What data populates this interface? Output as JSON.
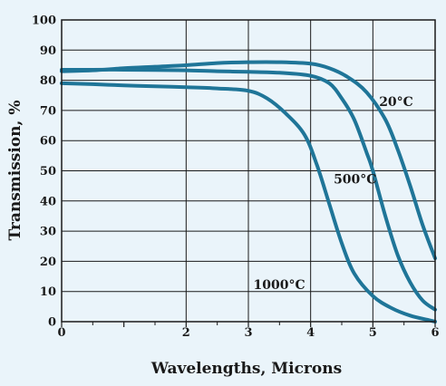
{
  "chart_data": {
    "type": "line",
    "xlabel": "Wavelengths, Microns",
    "ylabel": "Transmission, %",
    "xlim": [
      0,
      6
    ],
    "ylim": [
      0,
      100
    ],
    "x_ticks": [
      0,
      1,
      2,
      3,
      4,
      5,
      6
    ],
    "x_tick_labels": [
      "0",
      "",
      "2",
      "3",
      "4",
      "5",
      "6"
    ],
    "y_ticks": [
      0,
      10,
      20,
      30,
      40,
      50,
      60,
      70,
      80,
      90,
      100
    ],
    "y_tick_labels": [
      "0",
      "10",
      "20",
      "30",
      "40",
      "50",
      "60",
      "70",
      "80",
      "90",
      "100"
    ],
    "minor_x_ticks": [
      0.5,
      1.5,
      2.5,
      3.5,
      4.5,
      5.5
    ],
    "grid": true,
    "line_color": "#1f7598",
    "background_color": "#eaf4fa",
    "series": [
      {
        "name": "20°C",
        "x": [
          0,
          0.5,
          1,
          1.5,
          2,
          2.5,
          3,
          3.5,
          4,
          4.3,
          4.6,
          4.9,
          5.2,
          5.4,
          5.6,
          5.8,
          6
        ],
        "y": [
          83,
          83.3,
          84,
          84.5,
          85,
          85.7,
          86,
          86,
          85.5,
          84,
          81,
          76,
          67,
          57,
          45,
          32,
          21
        ]
      },
      {
        "name": "500°C",
        "x": [
          0,
          0.5,
          1,
          1.5,
          2,
          2.5,
          3,
          3.5,
          4,
          4.3,
          4.5,
          4.7,
          4.9,
          5,
          5.2,
          5.4,
          5.6,
          5.8,
          6
        ],
        "y": [
          83.5,
          83.5,
          83.5,
          83.4,
          83.3,
          83,
          82.8,
          82.5,
          81.5,
          79,
          74,
          67,
          56,
          50,
          35,
          22,
          13,
          7,
          4
        ]
      },
      {
        "name": "1000°C",
        "x": [
          0,
          0.5,
          1,
          1.5,
          2,
          2.5,
          3,
          3.3,
          3.6,
          3.9,
          4.1,
          4.3,
          4.5,
          4.7,
          5,
          5.3,
          5.6,
          5.9,
          6
        ],
        "y": [
          79,
          78.7,
          78.3,
          78,
          77.7,
          77.3,
          76.5,
          74,
          69,
          62,
          52,
          39,
          26,
          16,
          8.5,
          4.5,
          2,
          0.5,
          0
        ]
      }
    ],
    "series_labels": [
      {
        "text": "20°C",
        "x": 5.1,
        "y": 71.5
      },
      {
        "text": "500°C",
        "x": 4.37,
        "y": 45.8
      },
      {
        "text": "1000°C",
        "x": 3.08,
        "y": 10.8
      }
    ]
  }
}
